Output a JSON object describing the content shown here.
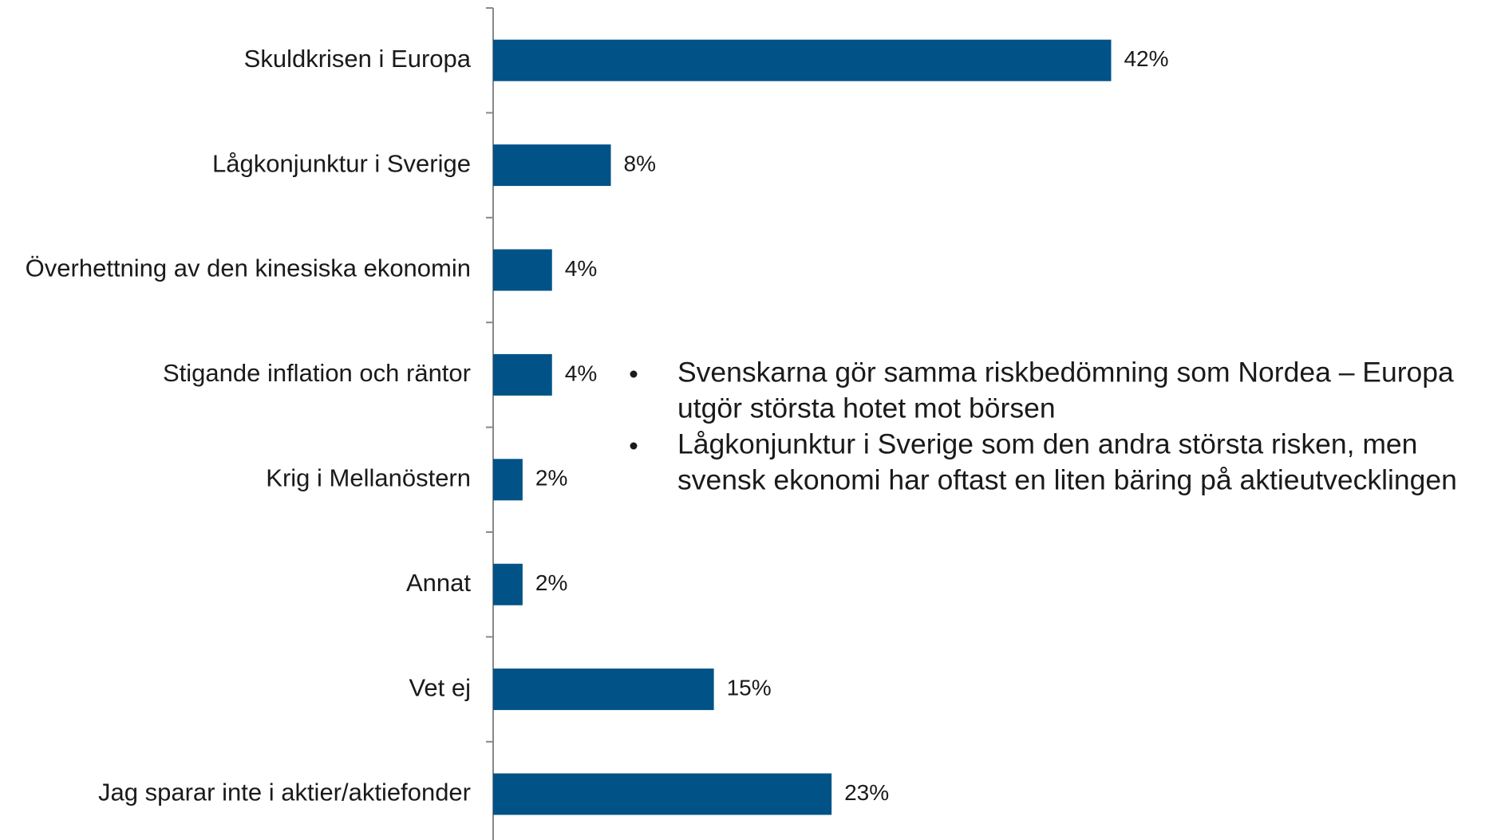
{
  "chart_data": {
    "type": "bar",
    "orientation": "horizontal",
    "categories": [
      "Skuldkrisen i Europa",
      "Lågkonjunktur i Sverige",
      "Överhettning av den kinesiska ekonomin",
      "Stigande inflation och räntor",
      "Krig i Mellanöstern",
      "Annat",
      "Vet ej",
      "Jag sparar inte i aktier/aktiefonder"
    ],
    "values": [
      42,
      8,
      4,
      4,
      2,
      2,
      15,
      23
    ],
    "value_labels": [
      "42%",
      "8%",
      "4%",
      "4%",
      "2%",
      "2%",
      "15%",
      "23%"
    ],
    "color": "#005287",
    "bullets": [
      [
        "Svenskarna gör samma riskbedömning som Nordea – Europa",
        "utgör största hotet mot börsen"
      ],
      [
        "Lågkonjunktur i Sverige som den andra största risken, men",
        "svensk ekonomi har oftast en liten bäring på aktieutvecklingen"
      ]
    ]
  }
}
